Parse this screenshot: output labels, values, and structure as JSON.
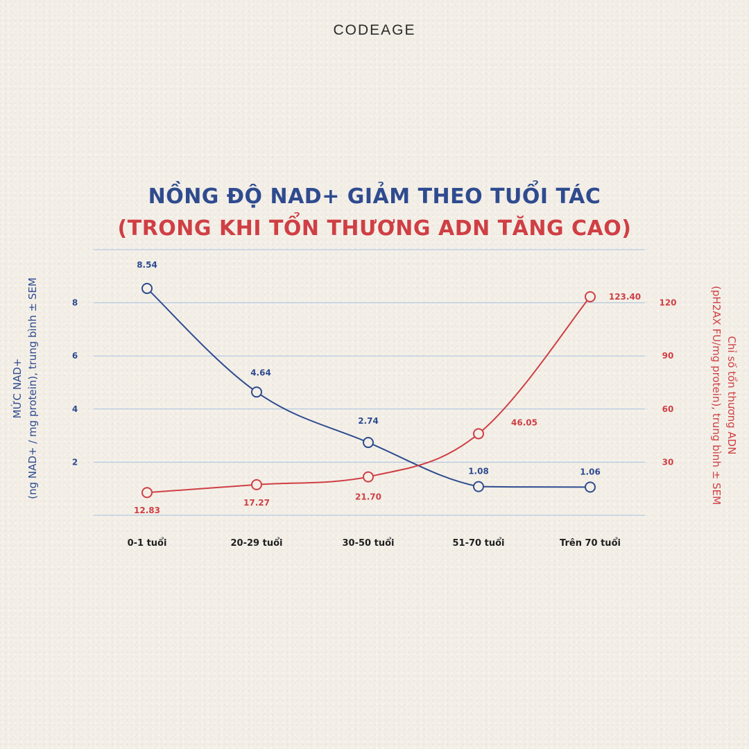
{
  "brand": "CODEAGE",
  "colors": {
    "nad_blue": "#2f4b8f",
    "dna_red": "#cf3f44",
    "grid": "#a9c3e0",
    "text_dark": "#1f1f1f",
    "background": "#f3efe7"
  },
  "chart_data": {
    "type": "line",
    "title": "NỒNG ĐỘ NAD+ GIẢM THEO TUỔI TÁC",
    "subtitle": "(TRONG KHI TỔN THƯƠNG ADN TĂNG CAO)",
    "categories": [
      "0-1 tuổi",
      "20-29 tuổi",
      "30-50 tuổi",
      "51-70 tuổi",
      "Trên 70 tuổi"
    ],
    "y_left": {
      "label_line1": "MỨC NAD+",
      "label_line2": "(ng NAD+ / mg protein), trung bình ± SEM",
      "ticks": [
        2,
        4,
        6,
        8
      ],
      "range": [
        0,
        10
      ]
    },
    "y_right": {
      "label_line1": "Chỉ số tổn thương ADN",
      "label_line2": "(pH2AX FU/mg protein), trung bình ± SEM",
      "ticks": [
        30,
        60,
        90,
        120
      ],
      "range": [
        0,
        150
      ]
    },
    "grid": true,
    "series": [
      {
        "axis": "left",
        "values": [
          8.54,
          4.64,
          2.74,
          1.08,
          1.06
        ],
        "labels": [
          "8.54",
          "4.64",
          "2.74",
          "1.08",
          "1.06"
        ]
      },
      {
        "axis": "right",
        "values": [
          12.83,
          17.27,
          21.7,
          46.05,
          123.4
        ],
        "labels": [
          "12.83",
          "17.27",
          "21.70",
          "46.05",
          "123.40"
        ]
      }
    ]
  }
}
